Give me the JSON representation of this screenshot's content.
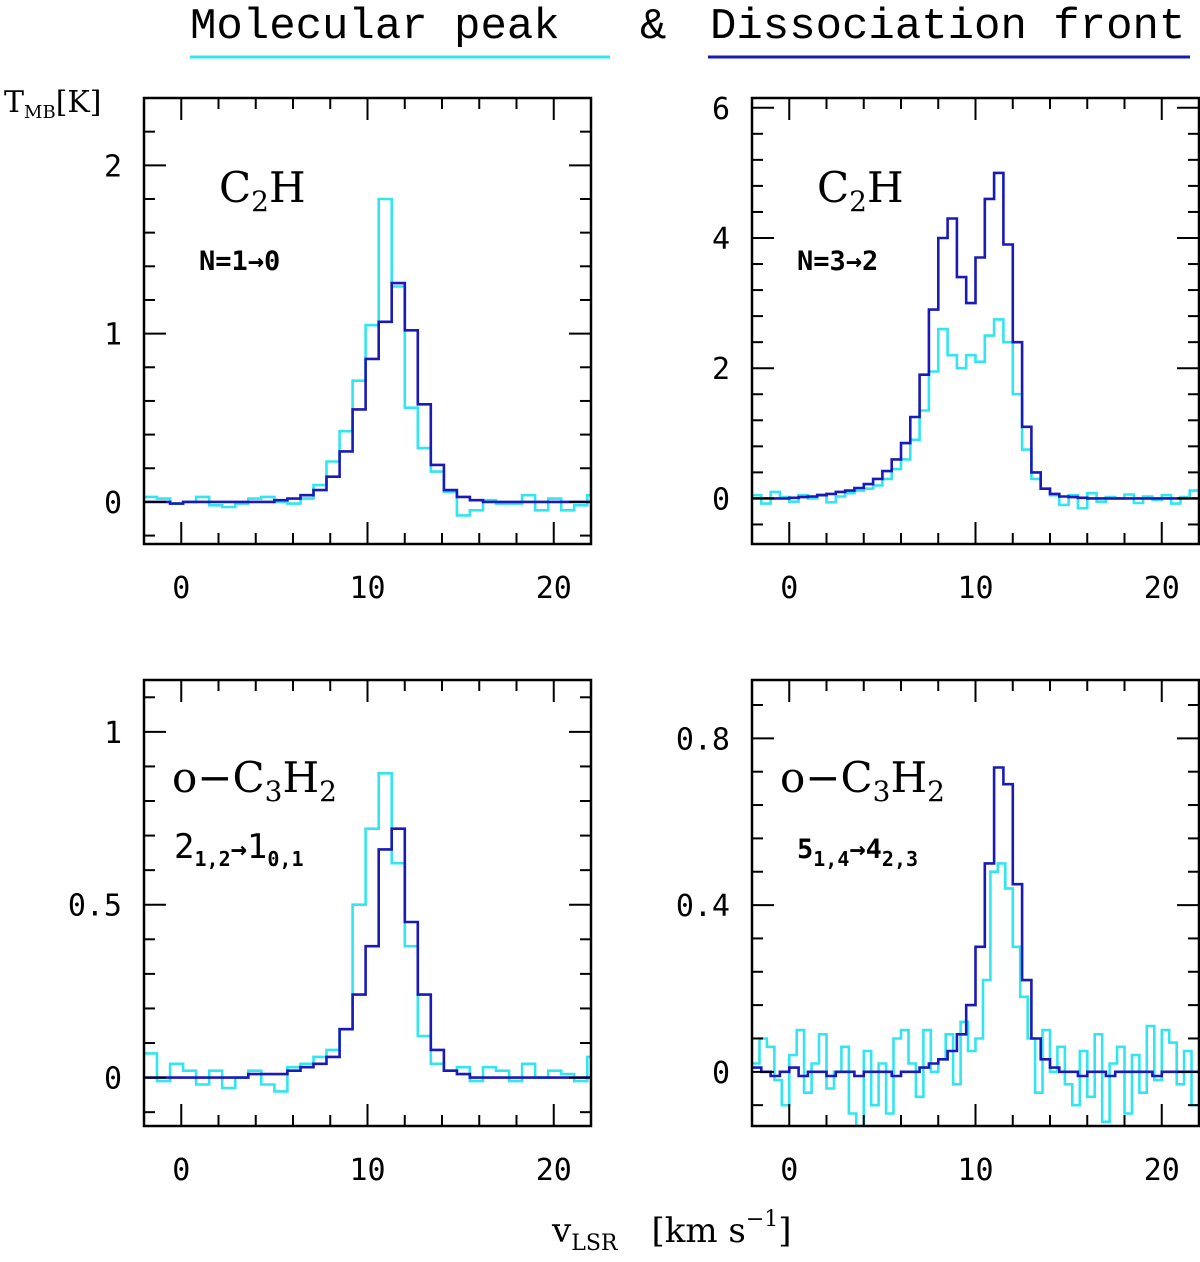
{
  "colors": {
    "molecular_peak": "#33e5ee",
    "dissociation_front": "#1a1ab8",
    "axis": "#000000"
  },
  "legend": {
    "molecular_peak": "Molecular peak",
    "ampersand": "&",
    "dissociation_front": "Dissociation front"
  },
  "axis_labels": {
    "y_main": "T",
    "y_sub": "MB",
    "y_unit": "[K]",
    "x_main": "v",
    "x_sub": "LSR",
    "x_unit_open": "[km s",
    "x_unit_exp": "−1",
    "x_unit_close": "]"
  },
  "chart_data": [
    {
      "type": "line",
      "step": true,
      "panel": "top-left",
      "molecule": {
        "base": "C",
        "sub1": "2",
        "rest": "H"
      },
      "transition": "N=1→0",
      "xlim": [
        -2,
        22
      ],
      "ylim": [
        -0.25,
        2.4
      ],
      "xticks": [
        0,
        10,
        20
      ],
      "yticks": [
        0,
        1,
        2
      ],
      "yticklabels": [
        "0",
        "1",
        "2"
      ],
      "series": [
        {
          "name": "Molecular peak",
          "x": [
            -2,
            -1.3,
            -0.6,
            0.1,
            0.8,
            1.5,
            2.2,
            2.9,
            3.6,
            4.3,
            5.0,
            5.7,
            6.4,
            7.1,
            7.8,
            8.5,
            9.2,
            9.9,
            10.6,
            11.3,
            12.0,
            12.7,
            13.4,
            14.1,
            14.8,
            15.5,
            16.2,
            16.9,
            17.6,
            18.3,
            19.0,
            19.7,
            20.4,
            21.1,
            21.8
          ],
          "y": [
            0.03,
            0.02,
            -0.01,
            0.0,
            0.03,
            -0.02,
            -0.03,
            -0.01,
            0.02,
            0.03,
            0.0,
            -0.01,
            0.02,
            0.1,
            0.24,
            0.42,
            0.72,
            1.05,
            1.8,
            1.28,
            0.56,
            0.32,
            0.18,
            0.06,
            -0.08,
            -0.05,
            0.01,
            -0.01,
            -0.01,
            0.04,
            -0.05,
            0.02,
            -0.05,
            -0.02,
            0.04
          ]
        },
        {
          "name": "Dissociation front",
          "x": [
            -2,
            -1.3,
            -0.6,
            0.1,
            0.8,
            1.5,
            2.2,
            2.9,
            3.6,
            4.3,
            5.0,
            5.7,
            6.4,
            7.1,
            7.8,
            8.5,
            9.2,
            9.9,
            10.6,
            11.3,
            12.0,
            12.7,
            13.4,
            14.1,
            14.8,
            15.5,
            16.2,
            16.9,
            17.6,
            18.3,
            19.0,
            19.7,
            20.4,
            21.1,
            21.8
          ],
          "y": [
            0.0,
            0.0,
            -0.01,
            0.0,
            0.0,
            0.0,
            0.0,
            0.0,
            0.0,
            0.0,
            0.01,
            0.02,
            0.04,
            0.07,
            0.15,
            0.3,
            0.55,
            0.85,
            1.07,
            1.3,
            1.02,
            0.58,
            0.22,
            0.07,
            0.03,
            0.01,
            0.0,
            0.0,
            0.0,
            0.0,
            0.0,
            0.0,
            0.0,
            0.0,
            0.0
          ]
        }
      ]
    },
    {
      "type": "line",
      "step": true,
      "panel": "top-right",
      "molecule": {
        "base": "C",
        "sub1": "2",
        "rest": "H"
      },
      "transition": "N=3→2",
      "xlim": [
        -2,
        22
      ],
      "ylim": [
        -0.7,
        6.15
      ],
      "xticks": [
        0,
        10,
        20
      ],
      "yticks": [
        0,
        2,
        4,
        6
      ],
      "yticklabels": [
        "0",
        "2",
        "4",
        "6"
      ],
      "series": [
        {
          "name": "Molecular peak",
          "x": [
            -2,
            -1.5,
            -1,
            -0.5,
            0,
            0.5,
            1,
            1.5,
            2,
            2.5,
            3,
            3.5,
            4,
            4.5,
            5,
            5.5,
            6,
            6.5,
            7,
            7.5,
            8,
            8.5,
            9,
            9.5,
            10,
            10.5,
            11,
            11.5,
            12,
            12.5,
            13,
            13.5,
            14,
            14.5,
            15,
            15.5,
            16,
            16.5,
            17,
            17.5,
            18,
            18.5,
            19,
            19.5,
            20,
            20.5,
            21,
            21.5
          ],
          "y": [
            0.05,
            -0.08,
            0.1,
            0.02,
            -0.05,
            0.05,
            0.0,
            0.06,
            -0.06,
            0.03,
            0.08,
            0.12,
            0.15,
            0.2,
            0.3,
            0.45,
            0.6,
            0.9,
            1.35,
            1.95,
            2.6,
            2.2,
            2.0,
            2.2,
            2.1,
            2.5,
            2.75,
            2.4,
            1.6,
            0.75,
            0.3,
            0.15,
            0.05,
            -0.1,
            0.05,
            -0.15,
            0.08,
            -0.05,
            0.02,
            0.0,
            0.06,
            -0.07,
            0.03,
            -0.02,
            0.05,
            -0.08,
            0.02,
            0.12
          ]
        },
        {
          "name": "Dissociation front",
          "x": [
            -2,
            -1.5,
            -1,
            -0.5,
            0,
            0.5,
            1,
            1.5,
            2,
            2.5,
            3,
            3.5,
            4,
            4.5,
            5,
            5.5,
            6,
            6.5,
            7,
            7.5,
            8,
            8.5,
            9,
            9.5,
            10,
            10.5,
            11,
            11.5,
            12,
            12.5,
            13,
            13.5,
            14,
            14.5,
            15,
            15.5,
            16,
            16.5,
            17,
            17.5,
            18,
            18.5,
            19,
            19.5,
            20,
            20.5,
            21,
            21.5
          ],
          "y": [
            0.0,
            0.0,
            0.0,
            0.0,
            0.01,
            0.02,
            0.03,
            0.05,
            0.07,
            0.1,
            0.12,
            0.16,
            0.22,
            0.3,
            0.42,
            0.6,
            0.85,
            1.25,
            1.9,
            2.9,
            4.0,
            4.3,
            3.4,
            3.0,
            3.7,
            4.6,
            5.0,
            3.9,
            2.4,
            1.1,
            0.4,
            0.15,
            0.07,
            0.03,
            0.02,
            0.01,
            0.0,
            0.0,
            0.0,
            0.0,
            0.0,
            0.0,
            0.0,
            0.0,
            0.0,
            0.0,
            0.0,
            0.0
          ]
        }
      ]
    },
    {
      "type": "line",
      "step": true,
      "panel": "bottom-left",
      "molecule": {
        "prefix": "o−",
        "base": "C",
        "sub1": "3",
        "rest": "H",
        "sub2": "2"
      },
      "transition": {
        "a": "2",
        "a_sub": "1,2",
        "arrow": "→",
        "b": "1",
        "b_sub": "0,1"
      },
      "xlim": [
        -2,
        22
      ],
      "ylim": [
        -0.14,
        1.15
      ],
      "xticks": [
        0,
        10,
        20
      ],
      "yticks": [
        0,
        0.5,
        1
      ],
      "yticklabels": [
        "0",
        "0.5",
        "1"
      ],
      "series": [
        {
          "name": "Molecular peak",
          "x": [
            -2,
            -1.3,
            -0.6,
            0.1,
            0.8,
            1.5,
            2.2,
            2.9,
            3.6,
            4.3,
            5.0,
            5.7,
            6.4,
            7.1,
            7.8,
            8.5,
            9.2,
            9.9,
            10.6,
            11.3,
            12.0,
            12.7,
            13.4,
            14.1,
            14.8,
            15.5,
            16.2,
            16.9,
            17.6,
            18.3,
            19.0,
            19.7,
            20.4,
            21.1,
            21.8
          ],
          "y": [
            0.07,
            -0.01,
            0.04,
            0.02,
            -0.02,
            0.02,
            -0.03,
            0.0,
            0.02,
            -0.02,
            -0.04,
            0.03,
            0.04,
            0.06,
            0.08,
            0.14,
            0.5,
            0.72,
            0.88,
            0.62,
            0.38,
            0.12,
            0.04,
            0.02,
            0.03,
            -0.01,
            0.03,
            0.02,
            -0.01,
            0.04,
            0.0,
            0.02,
            0.01,
            -0.01,
            0.06
          ]
        },
        {
          "name": "Dissociation front",
          "x": [
            -2,
            -1.3,
            -0.6,
            0.1,
            0.8,
            1.5,
            2.2,
            2.9,
            3.6,
            4.3,
            5.0,
            5.7,
            6.4,
            7.1,
            7.8,
            8.5,
            9.2,
            9.9,
            10.6,
            11.3,
            12.0,
            12.7,
            13.4,
            14.1,
            14.8,
            15.5,
            16.2,
            16.9,
            17.6,
            18.3,
            19.0,
            19.7,
            20.4,
            21.1,
            21.8
          ],
          "y": [
            0.0,
            0.0,
            0.0,
            0.0,
            0.0,
            0.0,
            0.0,
            0.0,
            0.01,
            0.01,
            0.01,
            0.02,
            0.03,
            0.04,
            0.06,
            0.14,
            0.24,
            0.38,
            0.66,
            0.72,
            0.45,
            0.24,
            0.08,
            0.02,
            0.01,
            0.0,
            0.0,
            0.0,
            0.0,
            0.0,
            0.0,
            0.0,
            0.0,
            0.0,
            0.0
          ]
        }
      ]
    },
    {
      "type": "line",
      "step": true,
      "panel": "bottom-right",
      "molecule": {
        "prefix": "o−",
        "base": "C",
        "sub1": "3",
        "rest": "H",
        "sub2": "2"
      },
      "transition": {
        "a": "5",
        "a_sub": "1,4",
        "arrow": "→",
        "b": "4",
        "b_sub": "2,3"
      },
      "xlim": [
        -2,
        22
      ],
      "ylim": [
        -0.13,
        0.94
      ],
      "xticks": [
        0,
        10,
        20
      ],
      "yticks": [
        0,
        0.4,
        0.8
      ],
      "yticklabels": [
        "0",
        "0.4",
        "0.8"
      ],
      "series": [
        {
          "name": "Molecular peak",
          "x": [
            -2,
            -1.6,
            -1.2,
            -0.8,
            -0.4,
            0,
            0.4,
            0.8,
            1.2,
            1.6,
            2,
            2.4,
            2.8,
            3.2,
            3.6,
            4,
            4.4,
            4.8,
            5.2,
            5.6,
            6,
            6.4,
            6.8,
            7.2,
            7.6,
            8,
            8.4,
            8.8,
            9.2,
            9.6,
            10,
            10.4,
            10.8,
            11.2,
            11.6,
            12,
            12.4,
            12.8,
            13.2,
            13.6,
            14,
            14.4,
            14.8,
            15.2,
            15.6,
            16,
            16.4,
            16.8,
            17.2,
            17.6,
            18,
            18.4,
            18.8,
            19.2,
            19.6,
            20,
            20.4,
            20.8,
            21.2,
            21.6
          ],
          "y": [
            0.02,
            0.08,
            0.06,
            -0.02,
            -0.08,
            0.04,
            0.1,
            -0.05,
            0.02,
            0.09,
            -0.04,
            0.0,
            0.06,
            -0.1,
            -0.13,
            0.05,
            -0.08,
            0.02,
            -0.1,
            0.08,
            0.1,
            0.02,
            -0.06,
            0.1,
            0.0,
            0.03,
            0.09,
            -0.03,
            0.12,
            0.05,
            0.08,
            0.22,
            0.48,
            0.5,
            0.44,
            0.3,
            0.18,
            0.08,
            -0.05,
            0.1,
            0.0,
            0.06,
            -0.03,
            -0.08,
            0.05,
            -0.06,
            0.09,
            -0.12,
            0.02,
            0.06,
            -0.1,
            0.04,
            -0.05,
            0.11,
            -0.02,
            0.1,
            0.07,
            -0.03,
            0.05,
            -0.08
          ]
        },
        {
          "name": "Dissociation front",
          "x": [
            -2,
            -1.5,
            -1,
            -0.5,
            0,
            0.5,
            1,
            1.5,
            2,
            2.5,
            3,
            3.5,
            4,
            4.5,
            5,
            5.5,
            6,
            6.5,
            7,
            7.5,
            8,
            8.5,
            9,
            9.5,
            10,
            10.5,
            11,
            11.5,
            12,
            12.5,
            13,
            13.5,
            14,
            14.5,
            15,
            15.5,
            16,
            16.5,
            17,
            17.5,
            18,
            18.5,
            19,
            19.5,
            20,
            20.5,
            21,
            21.5
          ],
          "y": [
            0.01,
            0.0,
            -0.01,
            0.0,
            0.01,
            -0.01,
            0.0,
            0.0,
            -0.01,
            0.0,
            0.0,
            -0.01,
            0.0,
            0.0,
            0.0,
            -0.01,
            0.0,
            0.0,
            0.01,
            0.02,
            0.03,
            0.05,
            0.09,
            0.16,
            0.3,
            0.5,
            0.73,
            0.69,
            0.45,
            0.22,
            0.08,
            0.03,
            0.01,
            0.0,
            0.0,
            -0.01,
            0.0,
            0.0,
            -0.01,
            0.0,
            0.0,
            0.0,
            0.0,
            -0.01,
            0.0,
            0.0,
            0.0,
            0.0
          ]
        }
      ]
    }
  ]
}
